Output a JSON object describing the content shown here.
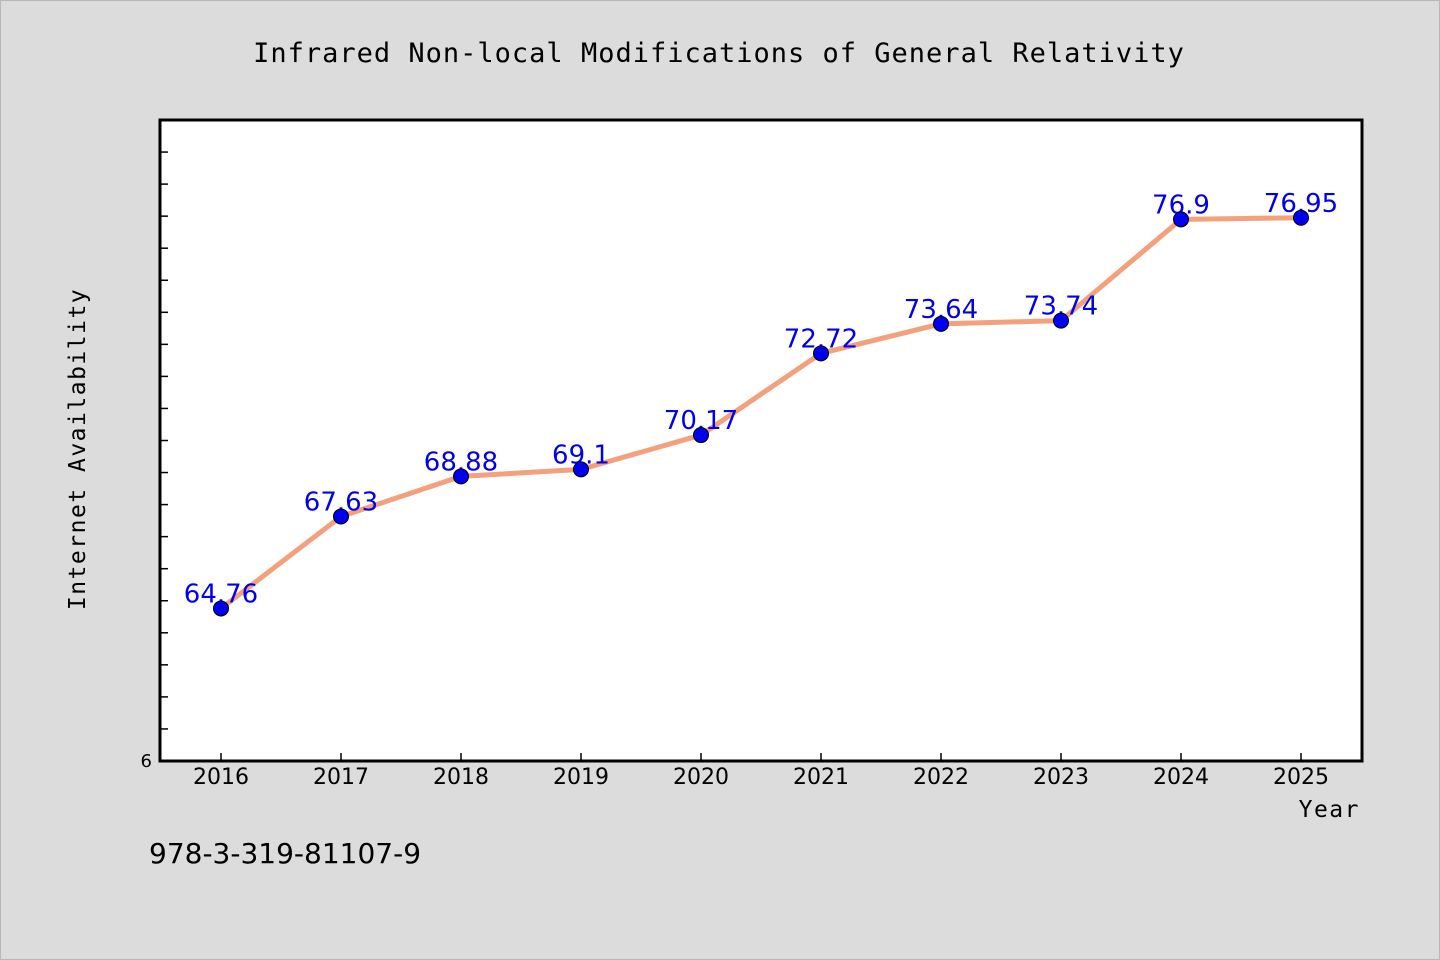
{
  "chart_data": {
    "type": "line",
    "title": "Infrared Non-local Modifications of General Relativity",
    "xlabel": "Year",
    "ylabel": "Internet Availability",
    "categories": [
      "2016",
      "2017",
      "2018",
      "2019",
      "2020",
      "2021",
      "2022",
      "2023",
      "2024",
      "2025"
    ],
    "series": [
      {
        "values": [
          64.76,
          67.63,
          68.88,
          69.1,
          70.17,
          72.72,
          73.64,
          73.74,
          76.9,
          76.95
        ],
        "labels": [
          "64.76",
          "67.63",
          "68.88",
          "69.1",
          "70.17",
          "72.72",
          "73.64",
          "73.74",
          "76.9",
          "76.95"
        ]
      }
    ],
    "ylim": [
      60,
      80
    ],
    "yticks_labeled": [
      "6"
    ],
    "grid": false,
    "line_color": "#f4a07c",
    "marker_color": "#0000ee",
    "label_color": "#0000ee"
  },
  "footer": {
    "code": "978-3-319-81107-9"
  }
}
